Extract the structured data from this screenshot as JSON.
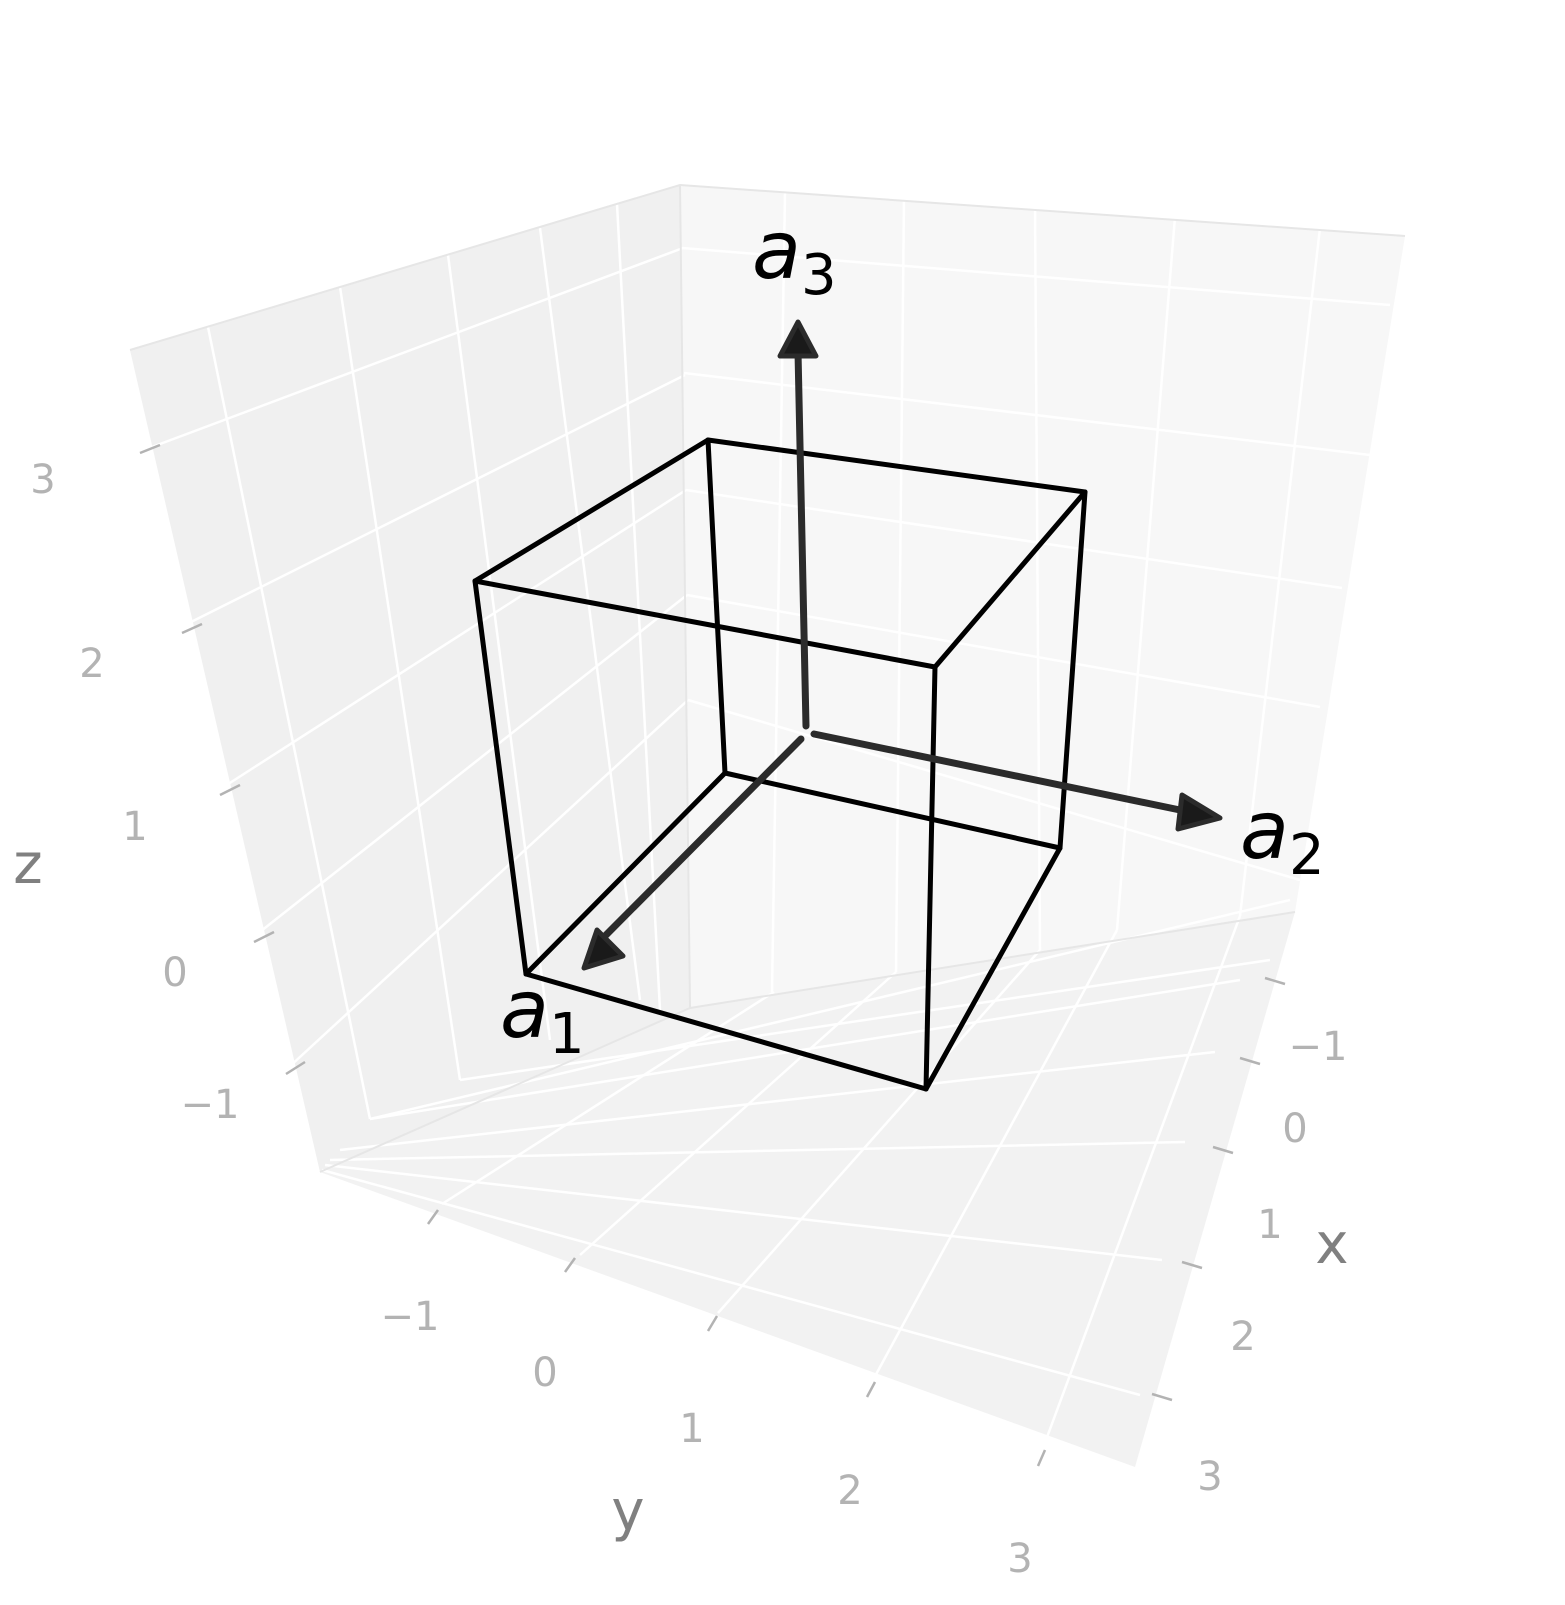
{
  "axes": {
    "x": {
      "label": "x",
      "ticks": [
        "−1",
        "0",
        "1",
        "2",
        "3"
      ]
    },
    "y": {
      "label": "y",
      "ticks": [
        "−1",
        "0",
        "1",
        "2",
        "3"
      ]
    },
    "z": {
      "label": "z",
      "ticks": [
        "−1",
        "0",
        "1",
        "2",
        "3"
      ]
    }
  },
  "vectors": [
    {
      "symbol": "a",
      "subscript": "1",
      "direction": [
        1,
        0,
        0
      ]
    },
    {
      "symbol": "a",
      "subscript": "2",
      "direction": [
        0,
        1,
        0
      ]
    },
    {
      "symbol": "a",
      "subscript": "3",
      "direction": [
        0,
        0,
        1
      ]
    }
  ],
  "cube": {
    "origin": [
      0,
      0,
      0
    ],
    "size": 1
  },
  "colors": {
    "pane_back": "#f2f2f2",
    "pane_right": "#f7f7f7",
    "pane_floor": "#f2f2f2",
    "grid": "#ffffff",
    "tick_text": "#b3b3b3",
    "axis_label": "#808080",
    "cube_edge": "#000000",
    "vector": "#2b2b2b"
  }
}
